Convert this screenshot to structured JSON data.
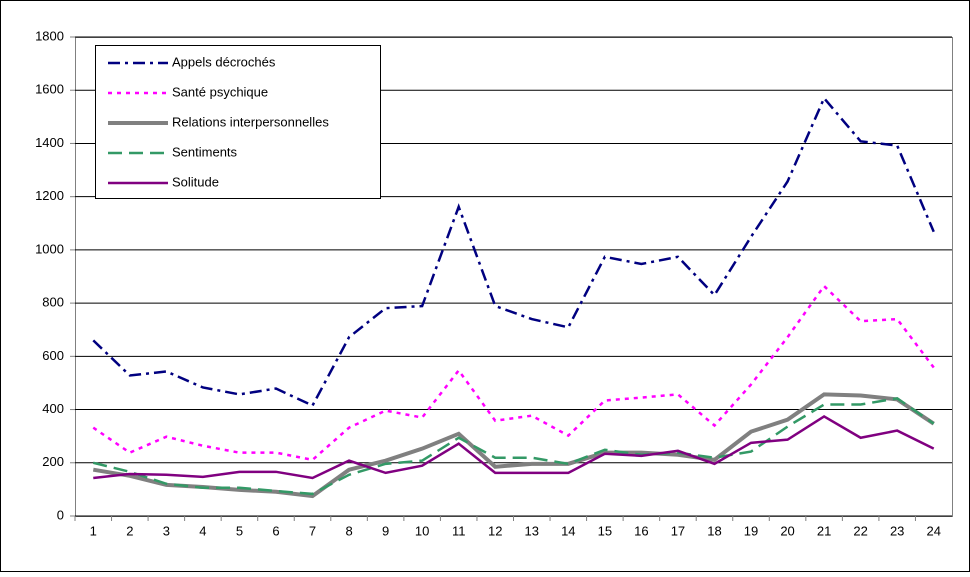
{
  "chart_data": {
    "type": "line",
    "categories": [
      "1",
      "2",
      "3",
      "4",
      "5",
      "6",
      "7",
      "8",
      "9",
      "10",
      "11",
      "12",
      "13",
      "14",
      "15",
      "16",
      "17",
      "18",
      "19",
      "20",
      "21",
      "22",
      "23",
      "24"
    ],
    "series": [
      {
        "name": "Appels décrochés",
        "color": "#000080",
        "dash": "dash-dot",
        "values": [
          660,
          528,
          543,
          483,
          457,
          479,
          415,
          672,
          781,
          789,
          1162,
          789,
          740,
          709,
          974,
          947,
          974,
          830,
          1049,
          1257,
          1570,
          1408,
          1392,
          1068
        ]
      },
      {
        "name": "Santé psychique",
        "color": "#ff00ff",
        "dash": "dot",
        "values": [
          332,
          238,
          298,
          264,
          238,
          238,
          211,
          332,
          396,
          370,
          547,
          358,
          377,
          302,
          434,
          445,
          457,
          340,
          494,
          672,
          864,
          732,
          740,
          558
        ]
      },
      {
        "name": "Relations interpersonnelles",
        "color": "#808080",
        "dash": "solid",
        "values": [
          174,
          151,
          117,
          109,
          98,
          91,
          75,
          174,
          208,
          253,
          309,
          185,
          196,
          196,
          238,
          238,
          230,
          211,
          317,
          362,
          457,
          453,
          438,
          347
        ]
      },
      {
        "name": "Sentiments",
        "color": "#339966",
        "dash": "dash",
        "values": [
          200,
          166,
          121,
          106,
          106,
          94,
          83,
          155,
          196,
          208,
          294,
          219,
          219,
          196,
          249,
          230,
          238,
          219,
          242,
          336,
          419,
          419,
          442,
          347
        ]
      },
      {
        "name": "Solitude",
        "color": "#800080",
        "dash": "solid",
        "values": [
          143,
          158,
          155,
          147,
          166,
          166,
          143,
          208,
          162,
          189,
          272,
          162,
          162,
          162,
          234,
          226,
          245,
          196,
          275,
          287,
          374,
          294,
          321,
          253
        ]
      }
    ],
    "ylim": [
      0,
      1800
    ],
    "yticks": [
      0,
      200,
      400,
      600,
      800,
      1000,
      1200,
      1400,
      1600,
      1800
    ],
    "grid": true,
    "legend": "upper left"
  }
}
